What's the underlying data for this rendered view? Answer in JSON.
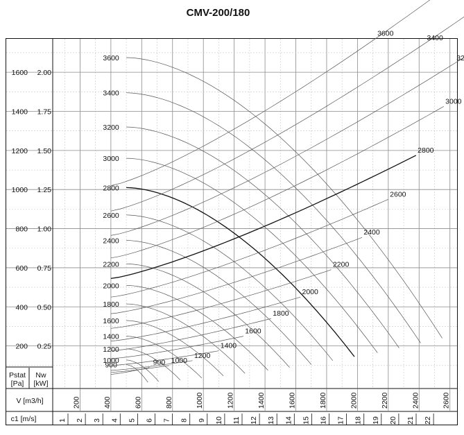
{
  "chart_data": {
    "type": "line",
    "title": "CMV-200/180",
    "pstat_label": [
      "Pstat",
      "[Pa]"
    ],
    "nw_label": [
      "Nw",
      "[kW]"
    ],
    "v_label": "V [m3/h]",
    "c1_label": "c1 [m/s]",
    "pstat_ticks": [
      "200",
      "400",
      "600",
      "800",
      "1000",
      "1200",
      "1400",
      "1600"
    ],
    "nw_ticks": [
      "0.25",
      "0.50",
      "0.75",
      "1.00",
      "1.25",
      "1.50",
      "1.75",
      "2.00"
    ],
    "v_ticks": [
      "200",
      "400",
      "600",
      "800",
      "1000",
      "1200",
      "1400",
      "1600",
      "1800",
      "2000",
      "2200",
      "2400",
      "2600"
    ],
    "c1_ticks": [
      "1",
      "2",
      "3",
      "4",
      "5",
      "6",
      "7",
      "8",
      "9",
      "10",
      "11",
      "12",
      "13",
      "14",
      "15",
      "16",
      "17",
      "18",
      "19",
      "20",
      "21",
      "22"
    ],
    "xlim": [
      0,
      2700
    ],
    "ylim": [
      0,
      1700
    ],
    "grid": true,
    "pressure_curves": [
      {
        "name": "3600",
        "v0": 500,
        "p0": 1675,
        "vmax": 2550,
        "pmax": 240
      },
      {
        "name": "3400",
        "v0": 500,
        "p0": 1495,
        "vmax": 2410,
        "pmax": 215
      },
      {
        "name": "3200",
        "v0": 500,
        "p0": 1320,
        "vmax": 2270,
        "pmax": 190
      },
      {
        "name": "3000",
        "v0": 500,
        "p0": 1160,
        "vmax": 2130,
        "pmax": 165
      },
      {
        "name": "2800",
        "v0": 500,
        "p0": 1010,
        "vmax": 1980,
        "pmax": 145,
        "bold": true
      },
      {
        "name": "2600",
        "v0": 500,
        "p0": 870,
        "vmax": 1840,
        "pmax": 125
      },
      {
        "name": "2400",
        "v0": 500,
        "p0": 740,
        "vmax": 1700,
        "pmax": 105
      },
      {
        "name": "2200",
        "v0": 500,
        "p0": 620,
        "vmax": 1560,
        "pmax": 90
      },
      {
        "name": "2000",
        "v0": 500,
        "p0": 510,
        "vmax": 1420,
        "pmax": 75
      },
      {
        "name": "1800",
        "v0": 500,
        "p0": 415,
        "vmax": 1270,
        "pmax": 60
      },
      {
        "name": "1600",
        "v0": 500,
        "p0": 330,
        "vmax": 1130,
        "pmax": 47
      },
      {
        "name": "1400",
        "v0": 500,
        "p0": 250,
        "vmax": 990,
        "pmax": 36
      },
      {
        "name": "1200",
        "v0": 500,
        "p0": 185,
        "vmax": 850,
        "pmax": 26
      },
      {
        "name": "1000",
        "v0": 500,
        "p0": 128,
        "vmax": 710,
        "pmax": 18
      },
      {
        "name": "900",
        "v0": 500,
        "p0": 104,
        "vmax": 640,
        "pmax": 14
      }
    ],
    "power_curves": [
      {
        "name": "900",
        "v0": 400,
        "p0": 55,
        "v1": 650,
        "p1": 90
      },
      {
        "name": "1000",
        "v0": 400,
        "p0": 65,
        "v1": 780,
        "p1": 100
      },
      {
        "name": "1200",
        "v0": 400,
        "p0": 75,
        "v1": 930,
        "p1": 125
      },
      {
        "name": "1400",
        "v0": 400,
        "p0": 100,
        "v1": 1100,
        "p1": 175
      },
      {
        "name": "1600",
        "v0": 400,
        "p0": 135,
        "v1": 1260,
        "p1": 250
      },
      {
        "name": "1800",
        "v0": 400,
        "p0": 175,
        "v1": 1440,
        "p1": 340
      },
      {
        "name": "2000",
        "v0": 400,
        "p0": 225,
        "v1": 1630,
        "p1": 450
      },
      {
        "name": "2200",
        "v0": 400,
        "p0": 290,
        "v1": 1830,
        "p1": 590
      },
      {
        "name": "2400",
        "v0": 400,
        "p0": 365,
        "v1": 2030,
        "p1": 755
      },
      {
        "name": "2600",
        "v0": 400,
        "p0": 450,
        "v1": 2200,
        "p1": 950
      },
      {
        "name": "2800",
        "v0": 400,
        "p0": 545,
        "v1": 2380,
        "p1": 1175,
        "bold": true
      },
      {
        "name": "3000",
        "v0": 400,
        "p0": 650,
        "v1": 2560,
        "p1": 1425
      },
      {
        "name": "3200",
        "v0": 400,
        "p0": 765,
        "v1": 2750,
        "p1": 1705
      },
      {
        "name": "3400",
        "v0": 400,
        "p0": 890,
        "v1": 2950,
        "p1": 2025
      },
      {
        "name": "3600",
        "v0": 400,
        "p0": 1020,
        "v1": 3150,
        "p1": 2375
      }
    ]
  }
}
